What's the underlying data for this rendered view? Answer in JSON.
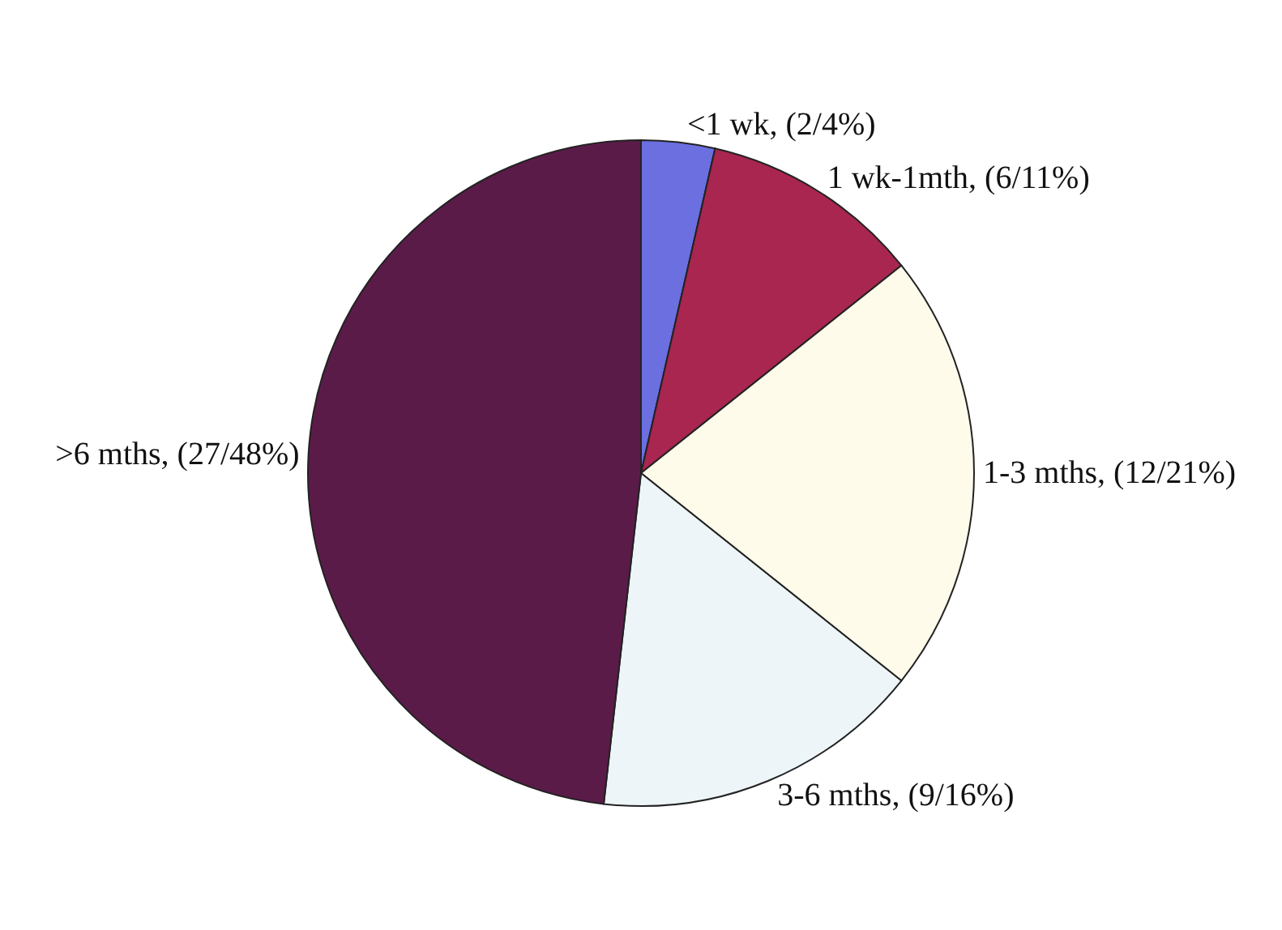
{
  "chart_data": {
    "type": "pie",
    "categories": [
      "<1 wk, (2/4%)",
      "1 wk-1mth, (6/11%)",
      "1-3 mths, (12/21%)",
      "3-6 mths, (9/16%)",
      ">6 mths, (27/48%)"
    ],
    "values": [
      2,
      6,
      12,
      9,
      27
    ],
    "colors": [
      "#6b6fe0",
      "#a8264f",
      "#fffbea",
      "#eef5f9",
      "#5b1b49"
    ],
    "legend": false
  }
}
